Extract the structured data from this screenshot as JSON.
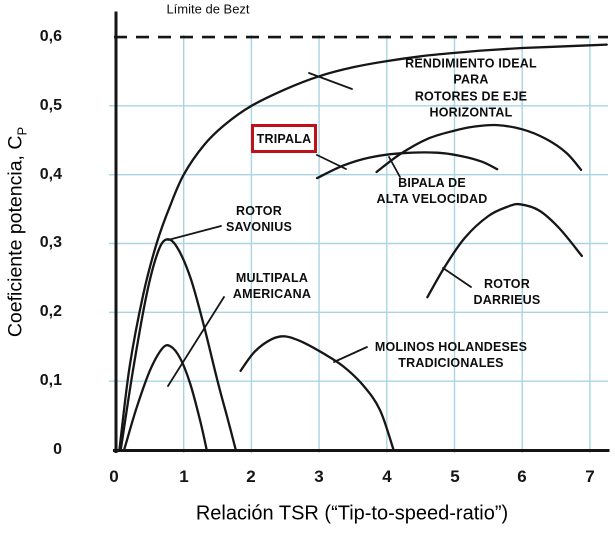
{
  "chart_data": {
    "type": "line",
    "xlabel": "Relación TSR (“Tip-to-speed-ratio”)",
    "ylabel": {
      "main": "Coeficiente potencia, C",
      "sub": "P"
    },
    "xlim": [
      0,
      7.3
    ],
    "ylim": [
      0,
      0.65
    ],
    "xticks": [
      "0",
      "1",
      "2",
      "3",
      "4",
      "5",
      "6",
      "7"
    ],
    "yticks": [
      "0",
      "0,1",
      "0,2",
      "0,3",
      "0,4",
      "0,5",
      "0,6"
    ],
    "grid": true,
    "grid_color": "#a9d5e2",
    "curve_color": "#161616",
    "betz_line": {
      "value": 0.6,
      "label": "Límite de Bezt",
      "style": "dashed"
    },
    "highlight": {
      "series": "tripala",
      "box_color": "#bf1118"
    },
    "series": [
      {
        "name": "ideal",
        "label": "RENDIMIENTO IDEAL PARA\nROTORES DE EJE HORIZONTAL",
        "points": [
          [
            0.05,
            0
          ],
          [
            0.2,
            0.12
          ],
          [
            0.4,
            0.225
          ],
          [
            0.6,
            0.3
          ],
          [
            0.8,
            0.355
          ],
          [
            1.0,
            0.4
          ],
          [
            1.3,
            0.443
          ],
          [
            1.6,
            0.472
          ],
          [
            2.0,
            0.5
          ],
          [
            2.5,
            0.524
          ],
          [
            3.0,
            0.543
          ],
          [
            3.5,
            0.556
          ],
          [
            4.0,
            0.565
          ],
          [
            4.5,
            0.572
          ],
          [
            5.0,
            0.577
          ],
          [
            5.5,
            0.581
          ],
          [
            6.0,
            0.584
          ],
          [
            6.5,
            0.586
          ],
          [
            7.0,
            0.588
          ],
          [
            7.25,
            0.589
          ]
        ]
      },
      {
        "name": "savonius",
        "label": "ROTOR\nSAVONIUS",
        "points": [
          [
            0.07,
            0
          ],
          [
            0.25,
            0.115
          ],
          [
            0.45,
            0.225
          ],
          [
            0.62,
            0.288
          ],
          [
            0.75,
            0.306
          ],
          [
            0.9,
            0.295
          ],
          [
            1.1,
            0.25
          ],
          [
            1.3,
            0.18
          ],
          [
            1.5,
            0.1
          ],
          [
            1.65,
            0.045
          ],
          [
            1.77,
            0
          ]
        ]
      },
      {
        "name": "multipala",
        "label": "MULTIPALA\nAMERICANA",
        "points": [
          [
            0.12,
            0
          ],
          [
            0.3,
            0.06
          ],
          [
            0.5,
            0.115
          ],
          [
            0.68,
            0.147
          ],
          [
            0.8,
            0.151
          ],
          [
            0.95,
            0.133
          ],
          [
            1.1,
            0.095
          ],
          [
            1.25,
            0.04
          ],
          [
            1.34,
            0
          ]
        ]
      },
      {
        "name": "molinos",
        "label": "MOLINOS HOLANDESES\nTRADICIONALES",
        "points": [
          [
            1.84,
            0.115
          ],
          [
            2.05,
            0.143
          ],
          [
            2.3,
            0.161
          ],
          [
            2.5,
            0.165
          ],
          [
            2.75,
            0.157
          ],
          [
            3.05,
            0.141
          ],
          [
            3.35,
            0.122
          ],
          [
            3.65,
            0.094
          ],
          [
            3.9,
            0.058
          ],
          [
            4.1,
            0
          ]
        ]
      },
      {
        "name": "tripala",
        "label": "TRIPALA",
        "points": [
          [
            2.97,
            0.395
          ],
          [
            3.35,
            0.413
          ],
          [
            3.75,
            0.425
          ],
          [
            4.2,
            0.431
          ],
          [
            4.74,
            0.432
          ],
          [
            5.1,
            0.427
          ],
          [
            5.4,
            0.419
          ],
          [
            5.63,
            0.408
          ]
        ]
      },
      {
        "name": "bipala",
        "label": "BIPALA DE\nALTA VELOCIDAD",
        "points": [
          [
            3.85,
            0.404
          ],
          [
            4.2,
            0.43
          ],
          [
            4.6,
            0.452
          ],
          [
            5.0,
            0.464
          ],
          [
            5.3,
            0.47
          ],
          [
            5.63,
            0.472
          ],
          [
            6.0,
            0.466
          ],
          [
            6.35,
            0.452
          ],
          [
            6.65,
            0.432
          ],
          [
            6.87,
            0.407
          ]
        ]
      },
      {
        "name": "darrieus",
        "label": "ROTOR\nDARRIEUS",
        "points": [
          [
            4.6,
            0.222
          ],
          [
            4.85,
            0.265
          ],
          [
            5.15,
            0.308
          ],
          [
            5.5,
            0.34
          ],
          [
            5.8,
            0.354
          ],
          [
            5.97,
            0.357
          ],
          [
            6.25,
            0.348
          ],
          [
            6.55,
            0.322
          ],
          [
            6.88,
            0.282
          ]
        ]
      }
    ]
  }
}
